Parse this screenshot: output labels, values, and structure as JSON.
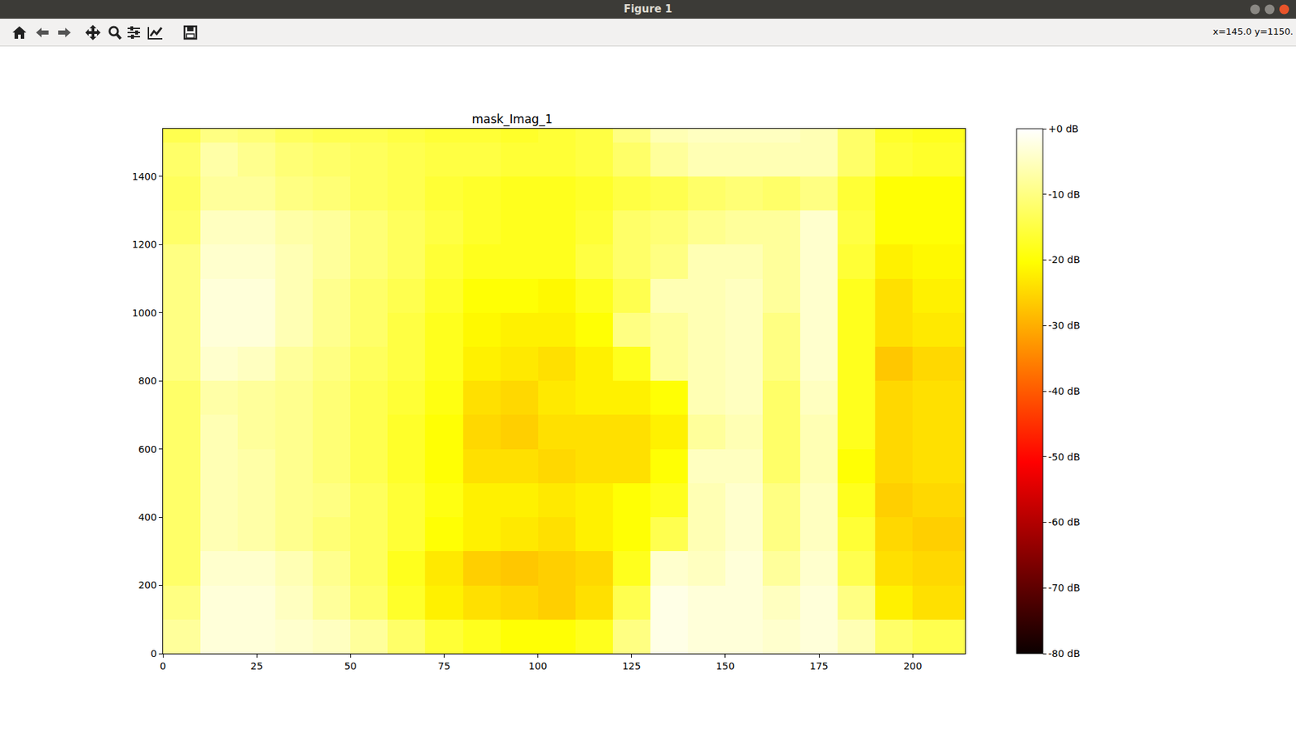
{
  "window": {
    "title": "Figure 1",
    "coordinates": "x=145.0 y=1150."
  },
  "chart_data": {
    "type": "heatmap",
    "title": "mask_Imag_1",
    "color": "hot",
    "xlim": [
      0,
      214
    ],
    "xticks": [
      0,
      25,
      50,
      75,
      100,
      125,
      150,
      175,
      200
    ],
    "ylim": [
      0,
      1540
    ],
    "yticks": [
      0,
      200,
      400,
      600,
      800,
      1000,
      1200,
      1400
    ],
    "x_edges": [
      0,
      10,
      20,
      30,
      40,
      50,
      60,
      70,
      80,
      90,
      100,
      110,
      120,
      130,
      140,
      150,
      160,
      170,
      180,
      190,
      200,
      214
    ],
    "y_edges": [
      0,
      100,
      200,
      300,
      400,
      500,
      600,
      700,
      800,
      900,
      1000,
      1100,
      1200,
      1300,
      1400,
      1500,
      1540
    ],
    "cells": [
      [
        -8,
        -3,
        -3,
        -4,
        -5,
        -8,
        -12,
        -16,
        -18,
        -20,
        -20,
        -18,
        -10,
        -2,
        -3,
        -3,
        -4,
        -3,
        -6,
        -12,
        -14
      ],
      [
        -10,
        -3,
        -3,
        -5,
        -8,
        -12,
        -17,
        -22,
        -24,
        -25,
        -26,
        -24,
        -14,
        -2,
        -3,
        -3,
        -5,
        -3,
        -10,
        -22,
        -24
      ],
      [
        -12,
        -4,
        -4,
        -6,
        -9,
        -13,
        -18,
        -23,
        -26,
        -27,
        -26,
        -25,
        -18,
        -4,
        -5,
        -3,
        -8,
        -4,
        -14,
        -24,
        -25
      ],
      [
        -12,
        -6,
        -7,
        -9,
        -11,
        -13,
        -16,
        -20,
        -22,
        -23,
        -24,
        -22,
        -20,
        -14,
        -6,
        -4,
        -10,
        -5,
        -16,
        -25,
        -26
      ],
      [
        -12,
        -6,
        -7,
        -9,
        -10,
        -13,
        -16,
        -19,
        -22,
        -22,
        -23,
        -22,
        -20,
        -18,
        -6,
        -4,
        -10,
        -5,
        -18,
        -26,
        -25
      ],
      [
        -12,
        -6,
        -7,
        -9,
        -11,
        -14,
        -17,
        -20,
        -24,
        -24,
        -25,
        -24,
        -24,
        -20,
        -5,
        -5,
        -12,
        -6,
        -20,
        -25,
        -24
      ],
      [
        -12,
        -6,
        -8,
        -9,
        -11,
        -14,
        -17,
        -20,
        -25,
        -26,
        -24,
        -24,
        -24,
        -22,
        -8,
        -6,
        -12,
        -6,
        -18,
        -25,
        -24
      ],
      [
        -12,
        -7,
        -8,
        -9,
        -11,
        -14,
        -16,
        -19,
        -24,
        -25,
        -23,
        -22,
        -22,
        -20,
        -6,
        -5,
        -12,
        -5,
        -18,
        -25,
        -24
      ],
      [
        -10,
        -4,
        -5,
        -8,
        -10,
        -13,
        -15,
        -18,
        -22,
        -23,
        -24,
        -22,
        -18,
        -8,
        -6,
        -5,
        -10,
        -4,
        -18,
        -27,
        -25
      ],
      [
        -10,
        -3,
        -3,
        -6,
        -9,
        -12,
        -15,
        -18,
        -21,
        -22,
        -22,
        -20,
        -10,
        -8,
        -6,
        -5,
        -10,
        -4,
        -18,
        -24,
        -23
      ],
      [
        -10,
        -3,
        -3,
        -6,
        -9,
        -12,
        -14,
        -17,
        -20,
        -20,
        -21,
        -18,
        -14,
        -6,
        -6,
        -5,
        -8,
        -4,
        -18,
        -24,
        -22
      ],
      [
        -10,
        -4,
        -4,
        -6,
        -8,
        -11,
        -13,
        -16,
        -18,
        -18,
        -18,
        -15,
        -12,
        -10,
        -6,
        -6,
        -8,
        -4,
        -16,
        -22,
        -21
      ],
      [
        -12,
        -5,
        -5,
        -7,
        -8,
        -11,
        -13,
        -15,
        -17,
        -18,
        -18,
        -16,
        -12,
        -11,
        -9,
        -8,
        -8,
        -4,
        -15,
        -20,
        -20
      ],
      [
        -13,
        -8,
        -8,
        -10,
        -11,
        -13,
        -14,
        -16,
        -17,
        -18,
        -18,
        -17,
        -15,
        -14,
        -12,
        -11,
        -12,
        -10,
        -16,
        -20,
        -20
      ],
      [
        -12,
        -7,
        -9,
        -11,
        -12,
        -13,
        -14,
        -15,
        -15,
        -16,
        -16,
        -15,
        -12,
        -8,
        -6,
        -6,
        -6,
        -6,
        -12,
        -16,
        -17
      ],
      [
        -14,
        -10,
        -11,
        -13,
        -14,
        -14,
        -15,
        -16,
        -16,
        -17,
        -16,
        -15,
        -10,
        -6,
        -5,
        -5,
        -5,
        -6,
        -12,
        -17,
        -18
      ]
    ],
    "colorbar": {
      "range": [
        -80,
        0
      ],
      "ticks": [
        {
          "value": 0,
          "label": "+0 dB"
        },
        {
          "value": -10,
          "label": "-10 dB"
        },
        {
          "value": -20,
          "label": "-20 dB"
        },
        {
          "value": -30,
          "label": "-30 dB"
        },
        {
          "value": -40,
          "label": "-40 dB"
        },
        {
          "value": -50,
          "label": "-50 dB"
        },
        {
          "value": -60,
          "label": "-60 dB"
        },
        {
          "value": -70,
          "label": "-70 dB"
        },
        {
          "value": -80,
          "label": "-80 dB"
        }
      ]
    }
  }
}
